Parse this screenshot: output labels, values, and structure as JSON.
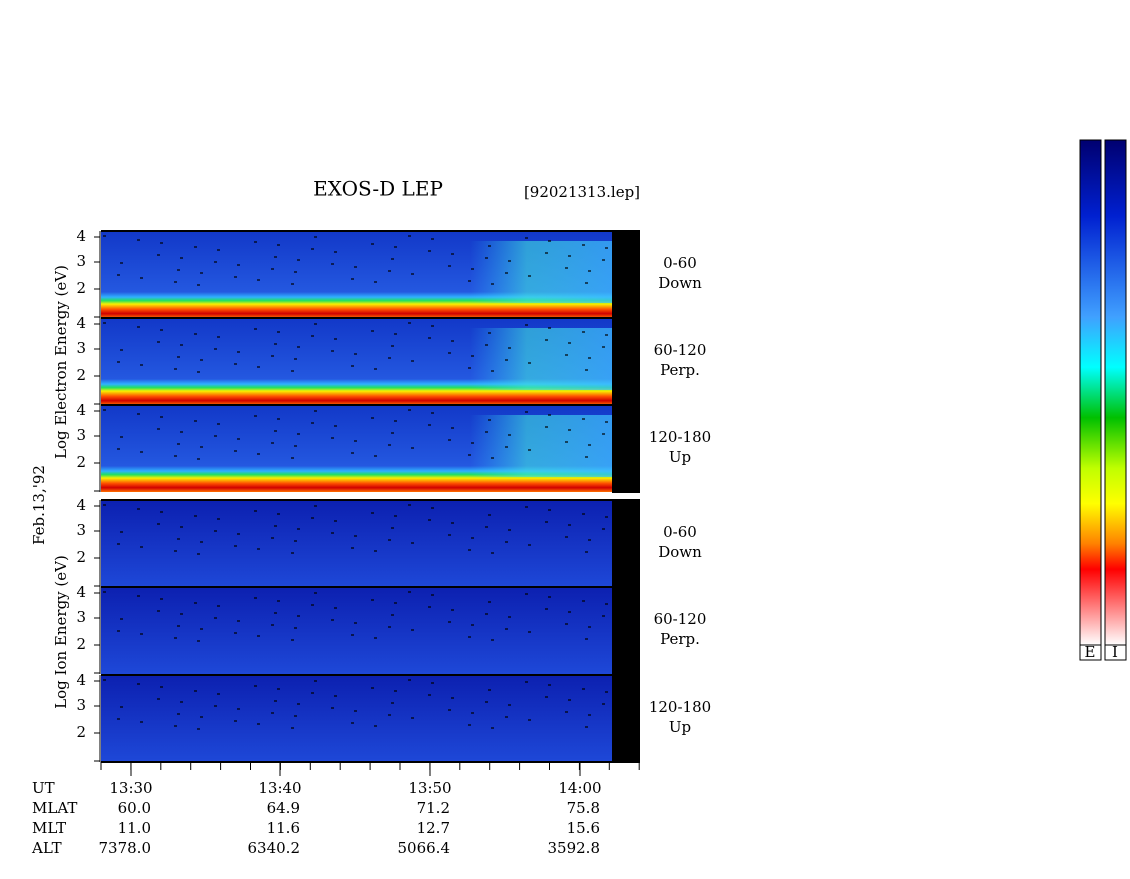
{
  "title": "EXOS-D LEP",
  "file": "[92021313.lep]",
  "date": "Feb.13,'92",
  "energy_ticks": [
    "4",
    "3",
    "2"
  ],
  "electron": {
    "ylabel": "Log Electron Energy (eV)",
    "panels": [
      {
        "angle": "0-60",
        "direction": "Down"
      },
      {
        "angle": "60-120",
        "direction": "Perp."
      },
      {
        "angle": "120-180",
        "direction": "Up"
      }
    ]
  },
  "ion": {
    "ylabel": "Log Ion Energy (eV)",
    "panels": [
      {
        "angle": "0-60",
        "direction": "Down"
      },
      {
        "angle": "60-120",
        "direction": "Perp."
      },
      {
        "angle": "120-180",
        "direction": "Up"
      }
    ]
  },
  "time_axis": {
    "row_labels": [
      "UT",
      "MLAT",
      "MLT",
      "ALT"
    ],
    "columns": [
      [
        "13:30",
        "60.0",
        "11.0",
        "7378.0"
      ],
      [
        "13:40",
        "64.9",
        "11.6",
        "6340.2"
      ],
      [
        "13:50",
        "71.2",
        "12.7",
        "5066.4"
      ],
      [
        "14:00",
        "75.8",
        "15.6",
        "3592.8"
      ]
    ]
  },
  "colorbar": {
    "labels": [
      "E",
      "I"
    ]
  }
}
